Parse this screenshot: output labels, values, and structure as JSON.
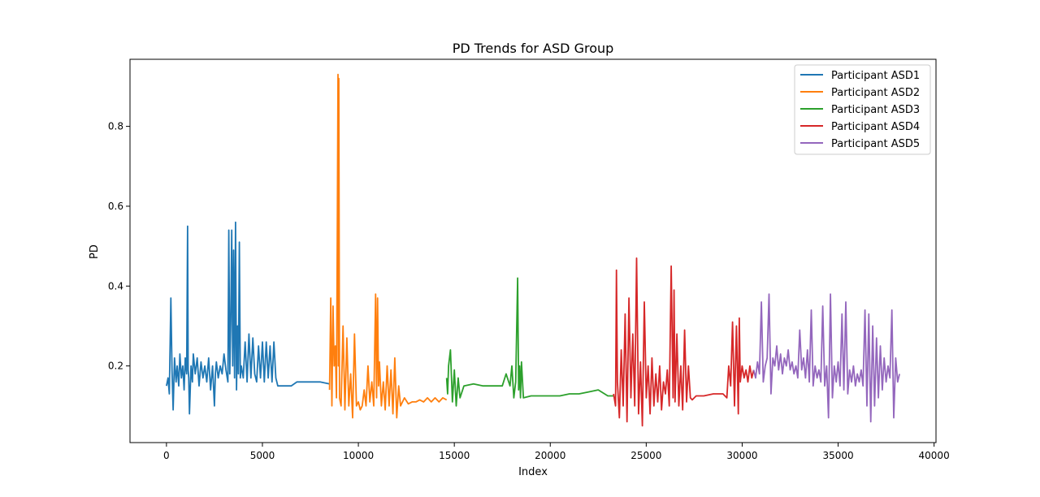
{
  "chart_data": {
    "type": "line",
    "title": "PD Trends for ASD Group",
    "xlabel": "Index",
    "ylabel": "PD",
    "xlim": [
      -1900,
      40100
    ],
    "ylim": [
      0.008,
      0.968
    ],
    "xticks": [
      0,
      5000,
      10000,
      15000,
      20000,
      25000,
      30000,
      35000,
      40000
    ],
    "xtick_labels": [
      "0",
      "5000",
      "10000",
      "15000",
      "20000",
      "25000",
      "30000",
      "35000",
      "40000"
    ],
    "yticks": [
      0.2,
      0.4,
      0.6,
      0.8
    ],
    "ytick_labels": [
      "0.2",
      "0.4",
      "0.6",
      "0.8"
    ],
    "grid": false,
    "legend_position": "top-right",
    "series": [
      {
        "name": "Participant ASD1",
        "color": "#1f77b4",
        "x": [
          0,
          80,
          150,
          230,
          290,
          350,
          420,
          500,
          560,
          640,
          700,
          780,
          850,
          920,
          980,
          1050,
          1100,
          1130,
          1160,
          1200,
          1280,
          1350,
          1400,
          1500,
          1600,
          1700,
          1800,
          1900,
          2000,
          2100,
          2200,
          2300,
          2400,
          2500,
          2550,
          2600,
          2700,
          2800,
          2900,
          3000,
          3100,
          3200,
          3250,
          3300,
          3350,
          3400,
          3450,
          3500,
          3550,
          3600,
          3650,
          3700,
          3750,
          3800,
          3850,
          3900,
          4000,
          4100,
          4200,
          4300,
          4400,
          4500,
          4600,
          4700,
          4800,
          4900,
          5000,
          5100,
          5200,
          5300,
          5400,
          5500,
          5600,
          5700,
          5800,
          6000,
          6500,
          6800,
          7000,
          7500,
          8000,
          8500
        ],
        "y": [
          0.15,
          0.17,
          0.13,
          0.37,
          0.19,
          0.09,
          0.22,
          0.16,
          0.2,
          0.15,
          0.23,
          0.17,
          0.2,
          0.14,
          0.22,
          0.18,
          0.55,
          0.19,
          0.17,
          0.08,
          0.2,
          0.16,
          0.23,
          0.18,
          0.22,
          0.15,
          0.21,
          0.17,
          0.2,
          0.16,
          0.22,
          0.14,
          0.2,
          0.1,
          0.18,
          0.21,
          0.17,
          0.2,
          0.18,
          0.23,
          0.19,
          0.16,
          0.54,
          0.18,
          0.31,
          0.54,
          0.2,
          0.49,
          0.17,
          0.56,
          0.14,
          0.3,
          0.18,
          0.51,
          0.17,
          0.2,
          0.17,
          0.26,
          0.16,
          0.28,
          0.17,
          0.27,
          0.18,
          0.16,
          0.25,
          0.17,
          0.26,
          0.16,
          0.26,
          0.17,
          0.25,
          0.16,
          0.26,
          0.17,
          0.15,
          0.15,
          0.15,
          0.16,
          0.16,
          0.16,
          0.16,
          0.155
        ]
      },
      {
        "name": "Participant ASD2",
        "color": "#ff7f0e",
        "x": [
          8500,
          8560,
          8620,
          8680,
          8740,
          8800,
          8860,
          8900,
          8940,
          8960,
          8980,
          9020,
          9100,
          9200,
          9300,
          9400,
          9500,
          9600,
          9700,
          9800,
          9900,
          10000,
          10100,
          10200,
          10300,
          10400,
          10500,
          10600,
          10700,
          10800,
          10900,
          10950,
          11000,
          11050,
          11100,
          11200,
          11300,
          11400,
          11500,
          11600,
          11700,
          11800,
          11900,
          12000,
          12100,
          12200,
          12300,
          12400,
          12600,
          12800,
          13000,
          13200,
          13400,
          13600,
          13800,
          14000,
          14200,
          14400,
          14600
        ],
        "y": [
          0.14,
          0.37,
          0.1,
          0.35,
          0.2,
          0.25,
          0.12,
          0.52,
          0.93,
          0.2,
          0.92,
          0.12,
          0.1,
          0.3,
          0.09,
          0.27,
          0.1,
          0.18,
          0.07,
          0.28,
          0.1,
          0.11,
          0.09,
          0.1,
          0.14,
          0.1,
          0.2,
          0.11,
          0.16,
          0.1,
          0.38,
          0.12,
          0.37,
          0.15,
          0.21,
          0.1,
          0.16,
          0.09,
          0.2,
          0.1,
          0.19,
          0.08,
          0.22,
          0.07,
          0.15,
          0.1,
          0.11,
          0.12,
          0.105,
          0.11,
          0.11,
          0.115,
          0.11,
          0.12,
          0.11,
          0.12,
          0.11,
          0.12,
          0.115
        ]
      },
      {
        "name": "Participant ASD3",
        "color": "#2ca02c",
        "x": [
          14600,
          14650,
          14700,
          14800,
          14900,
          15000,
          15100,
          15200,
          15300,
          15500,
          16000,
          16500,
          17000,
          17500,
          17700,
          17900,
          18000,
          18100,
          18200,
          18300,
          18350,
          18400,
          18450,
          18500,
          18600,
          19000,
          19500,
          20000,
          20500,
          21000,
          21500,
          22000,
          22500,
          23000,
          23300
        ],
        "y": [
          0.17,
          0.13,
          0.2,
          0.24,
          0.11,
          0.19,
          0.1,
          0.17,
          0.12,
          0.15,
          0.155,
          0.15,
          0.15,
          0.15,
          0.18,
          0.15,
          0.2,
          0.12,
          0.16,
          0.42,
          0.14,
          0.2,
          0.12,
          0.21,
          0.12,
          0.125,
          0.125,
          0.125,
          0.125,
          0.13,
          0.13,
          0.135,
          0.14,
          0.125,
          0.125
        ]
      },
      {
        "name": "Participant ASD4",
        "color": "#d62728",
        "x": [
          23300,
          23400,
          23450,
          23500,
          23600,
          23700,
          23800,
          23900,
          24000,
          24100,
          24200,
          24300,
          24400,
          24500,
          24600,
          24700,
          24800,
          24900,
          25000,
          25100,
          25200,
          25300,
          25400,
          25500,
          25600,
          25700,
          25800,
          25900,
          26000,
          26100,
          26200,
          26300,
          26400,
          26450,
          26500,
          26600,
          26700,
          26800,
          26900,
          27000,
          27100,
          27200,
          27300,
          27400,
          27600,
          28000,
          28500,
          29000,
          29200,
          29300,
          29400,
          29500,
          29600,
          29700,
          29800,
          29850,
          29900,
          30000,
          30100,
          30200,
          30300,
          30400,
          30500,
          30600
        ],
        "y": [
          0.13,
          0.1,
          0.44,
          0.16,
          0.07,
          0.24,
          0.1,
          0.33,
          0.06,
          0.37,
          0.12,
          0.28,
          0.1,
          0.47,
          0.08,
          0.21,
          0.05,
          0.36,
          0.12,
          0.2,
          0.08,
          0.22,
          0.1,
          0.18,
          0.11,
          0.2,
          0.09,
          0.16,
          0.13,
          0.19,
          0.1,
          0.45,
          0.12,
          0.39,
          0.11,
          0.28,
          0.1,
          0.2,
          0.09,
          0.29,
          0.11,
          0.2,
          0.12,
          0.115,
          0.125,
          0.125,
          0.13,
          0.13,
          0.12,
          0.2,
          0.15,
          0.31,
          0.1,
          0.3,
          0.08,
          0.32,
          0.16,
          0.2,
          0.17,
          0.19,
          0.16,
          0.2,
          0.17,
          0.19
        ]
      },
      {
        "name": "Participant ASD5",
        "color": "#9467bd",
        "x": [
          30600,
          30700,
          30800,
          30900,
          31000,
          31100,
          31200,
          31300,
          31400,
          31500,
          31600,
          31700,
          31800,
          31900,
          32000,
          32100,
          32200,
          32300,
          32400,
          32500,
          32600,
          32700,
          32800,
          32900,
          33000,
          33100,
          33200,
          33300,
          33400,
          33500,
          33600,
          33700,
          33800,
          33900,
          34000,
          34100,
          34200,
          34300,
          34400,
          34500,
          34600,
          34700,
          34800,
          34900,
          35000,
          35100,
          35200,
          35300,
          35400,
          35500,
          35600,
          35700,
          35800,
          35900,
          36000,
          36100,
          36200,
          36300,
          36400,
          36500,
          36600,
          36700,
          36800,
          36900,
          37000,
          37100,
          37200,
          37300,
          37400,
          37500,
          37600,
          37700,
          37800,
          37900,
          38000,
          38100,
          38200
        ],
        "y": [
          0.19,
          0.17,
          0.21,
          0.18,
          0.36,
          0.16,
          0.2,
          0.22,
          0.38,
          0.13,
          0.22,
          0.2,
          0.25,
          0.19,
          0.23,
          0.18,
          0.22,
          0.2,
          0.24,
          0.19,
          0.21,
          0.18,
          0.2,
          0.17,
          0.29,
          0.19,
          0.22,
          0.17,
          0.24,
          0.16,
          0.34,
          0.15,
          0.2,
          0.17,
          0.19,
          0.16,
          0.35,
          0.15,
          0.2,
          0.07,
          0.38,
          0.12,
          0.2,
          0.16,
          0.21,
          0.15,
          0.33,
          0.14,
          0.36,
          0.13,
          0.19,
          0.16,
          0.2,
          0.15,
          0.18,
          0.16,
          0.19,
          0.15,
          0.34,
          0.1,
          0.33,
          0.06,
          0.3,
          0.1,
          0.27,
          0.12,
          0.25,
          0.14,
          0.22,
          0.16,
          0.2,
          0.17,
          0.34,
          0.07,
          0.22,
          0.16,
          0.18
        ]
      }
    ]
  }
}
